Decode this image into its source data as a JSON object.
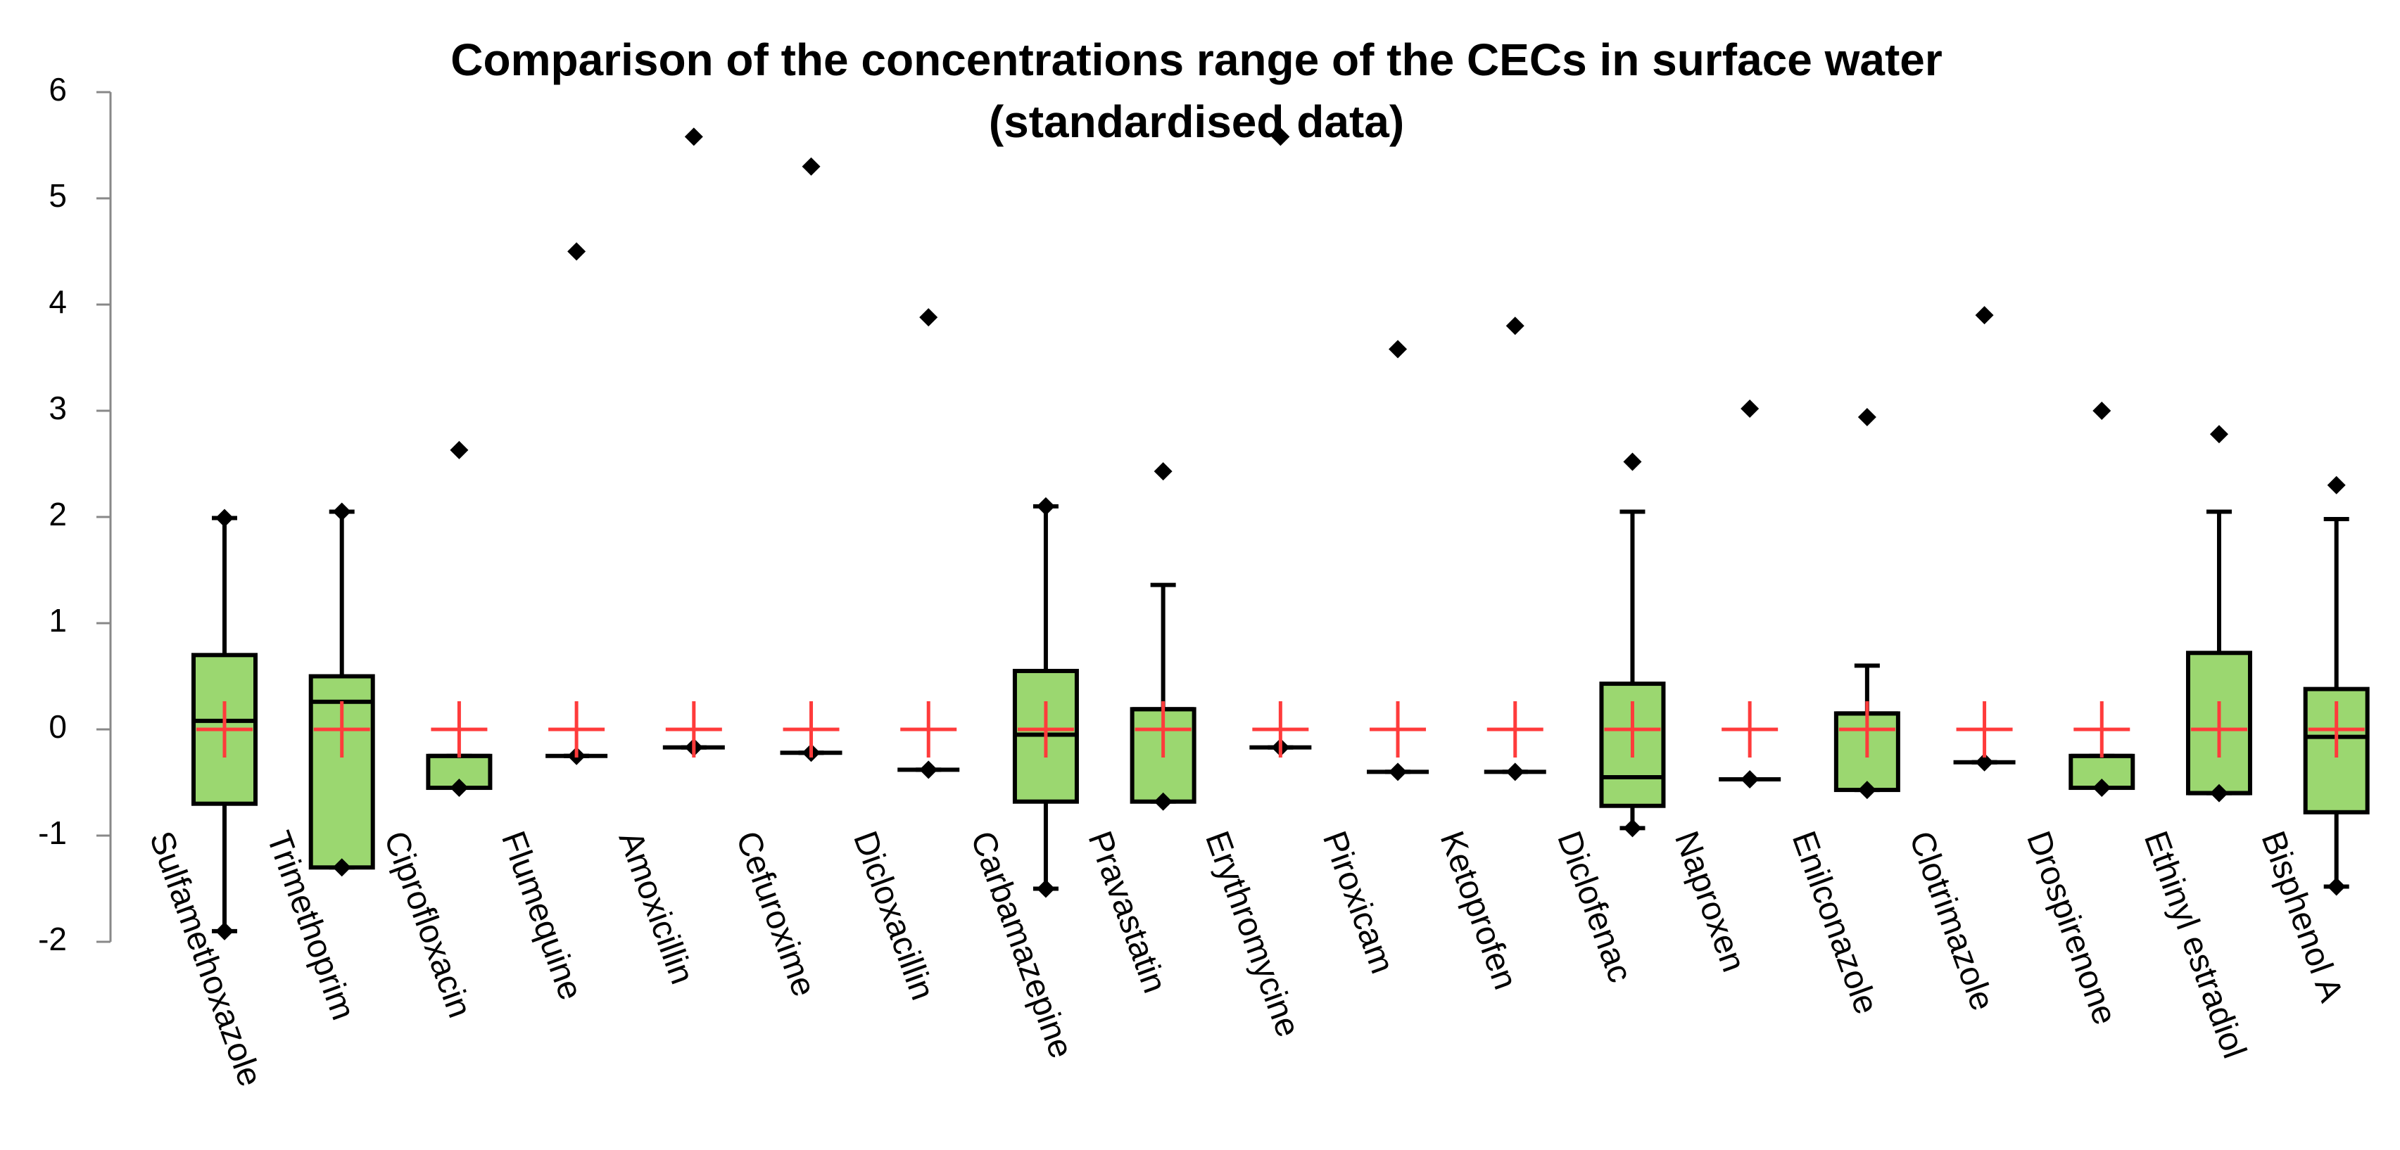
{
  "chart_data": {
    "type": "box",
    "title": "Comparison of the concentrations range of the CECs in surface water",
    "subtitle": "(standardised data)",
    "categories": [
      "Sulfamethoxazole",
      "Trimethoprim",
      "Ciprofloxacin",
      "Flumequine",
      "Amoxicillin",
      "Cefuroxime",
      "Dicloxacillin",
      "Carbamazepine",
      "Pravastatin",
      "Erythromycine",
      "Piroxicam",
      "Ketoprofen",
      "Diclofenac",
      "Naproxen",
      "Enilconazole",
      "Clotrimazole",
      "Drospirenone",
      "Ethinyl estradiol",
      "Bisphenol A"
    ],
    "min": [
      -1.9,
      -1.3,
      -0.55,
      -0.25,
      -0.17,
      -0.22,
      -0.38,
      -1.5,
      -0.68,
      -0.17,
      -0.4,
      -0.4,
      -0.93,
      -0.47,
      -0.57,
      -0.31,
      -0.55,
      -0.6,
      -1.48
    ],
    "q1": [
      -0.7,
      -1.3,
      -0.55,
      -0.25,
      -0.17,
      -0.22,
      -0.38,
      -0.68,
      -0.68,
      -0.17,
      -0.4,
      -0.4,
      -0.72,
      -0.47,
      -0.57,
      -0.31,
      -0.55,
      -0.6,
      -0.78
    ],
    "median": [
      0.08,
      0.26,
      -0.25,
      -0.25,
      -0.17,
      -0.22,
      -0.38,
      -0.05,
      0.19,
      -0.17,
      -0.4,
      -0.4,
      -0.45,
      -0.47,
      0.15,
      -0.31,
      -0.25,
      -0.6,
      -0.07
    ],
    "q3": [
      0.7,
      0.5,
      -0.25,
      -0.25,
      -0.17,
      -0.22,
      -0.38,
      0.55,
      0.19,
      -0.17,
      -0.4,
      -0.4,
      0.43,
      -0.47,
      0.15,
      -0.31,
      -0.25,
      0.72,
      0.38
    ],
    "whisker_high": [
      1.99,
      2.05,
      -0.25,
      -0.25,
      -0.17,
      -0.22,
      -0.38,
      2.1,
      1.36,
      -0.17,
      -0.4,
      -0.4,
      2.05,
      -0.47,
      0.6,
      -0.31,
      -0.25,
      2.05,
      1.98
    ],
    "max": [
      1.99,
      2.05,
      2.63,
      4.5,
      5.58,
      5.3,
      3.88,
      2.1,
      2.43,
      5.58,
      3.58,
      3.8,
      2.52,
      3.02,
      2.94,
      3.9,
      3.0,
      2.78,
      2.3
    ],
    "mean": [
      0,
      0,
      0,
      0,
      0,
      0,
      0,
      0,
      0,
      0,
      0,
      0,
      0,
      0,
      0,
      0,
      0,
      0,
      0
    ],
    "box_color": "#9bd770",
    "mean_color": "#ff3b3b",
    "ylim": [
      -2,
      6
    ],
    "yticks": [
      -2,
      -1,
      0,
      1,
      2,
      3,
      4,
      5,
      6
    ]
  }
}
